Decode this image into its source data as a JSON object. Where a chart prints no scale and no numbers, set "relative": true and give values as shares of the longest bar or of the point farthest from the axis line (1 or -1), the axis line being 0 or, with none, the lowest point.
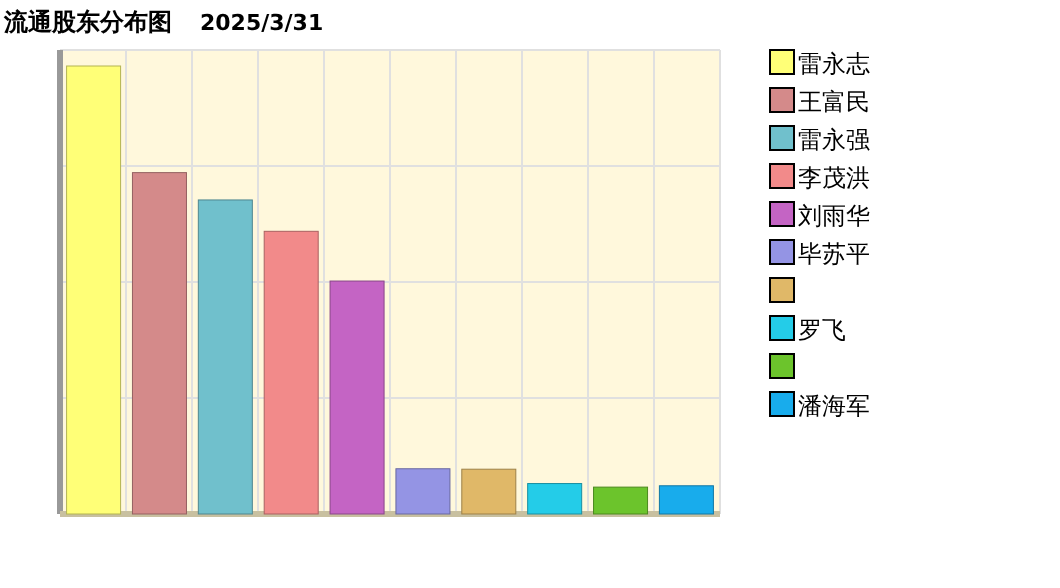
{
  "chart_data": {
    "type": "bar",
    "title": "流通股东分布图",
    "subtitle": "2025/3/31",
    "relative": true,
    "grid": true,
    "legend": "right",
    "stacked": true,
    "categories": [
      null,
      null,
      null,
      null,
      null,
      null,
      null,
      null,
      null,
      null
    ],
    "series": [
      {
        "name": "雷永志",
        "color": "#ffff77",
        "values": [
          1,
          null,
          null,
          null,
          null,
          null,
          null,
          null,
          null,
          null
        ]
      },
      {
        "name": "王富民",
        "color": "#d48a8a",
        "values": [
          null,
          0.762,
          null,
          null,
          null,
          null,
          null,
          null,
          null,
          null
        ]
      },
      {
        "name": "雷永强",
        "color": "#70c0cc",
        "values": [
          null,
          null,
          0.701,
          null,
          null,
          null,
          null,
          null,
          null,
          null
        ]
      },
      {
        "name": "李茂洪",
        "color": "#f28a8a",
        "values": [
          null,
          null,
          null,
          0.631,
          null,
          null,
          null,
          null,
          null,
          null
        ]
      },
      {
        "name": "刘雨华",
        "color": "#c464c4",
        "values": [
          null,
          null,
          null,
          null,
          0.52,
          null,
          null,
          null,
          null,
          null
        ]
      },
      {
        "name": "毕苏平",
        "color": "#9494e4",
        "values": [
          null,
          null,
          null,
          null,
          null,
          0.101,
          null,
          null,
          null,
          null
        ]
      },
      {
        "color": "#e0b868",
        "values": [
          null,
          null,
          null,
          null,
          null,
          null,
          0.1,
          null,
          null,
          null
        ]
      },
      {
        "name": "罗飞",
        "color": "#24cce8",
        "values": [
          null,
          null,
          null,
          null,
          null,
          null,
          null,
          0.068,
          null,
          null
        ]
      },
      {
        "color": "#6cc42c",
        "values": [
          null,
          null,
          null,
          null,
          null,
          null,
          null,
          null,
          0.06,
          null
        ]
      },
      {
        "name": "潘海军",
        "color": "#18acec",
        "values": [
          null,
          null,
          null,
          null,
          null,
          null,
          null,
          null,
          null,
          0.063
        ]
      }
    ]
  }
}
